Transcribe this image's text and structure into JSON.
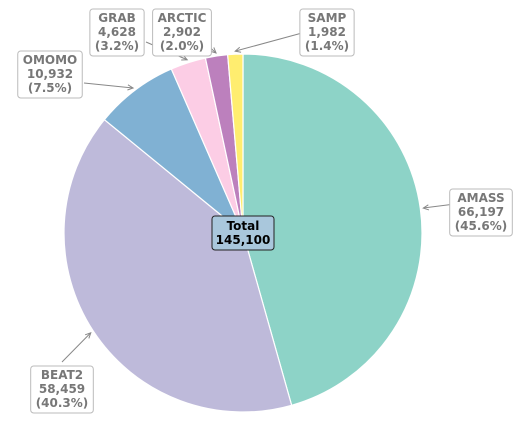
{
  "chart_data": {
    "type": "pie",
    "slices": [
      {
        "name": "AMASS",
        "value": 66197,
        "value_label": "66,197",
        "percent_label": "(45.6%)",
        "color": "#8dd3c7"
      },
      {
        "name": "BEAT2",
        "value": 58459,
        "value_label": "58,459",
        "percent_label": "(40.3%)",
        "color": "#bebada"
      },
      {
        "name": "OMOMO",
        "value": 10932,
        "value_label": "10,932",
        "percent_label": "(7.5%)",
        "color": "#80b1d3"
      },
      {
        "name": "GRAB",
        "value": 4628,
        "value_label": "4,628",
        "percent_label": "(3.2%)",
        "color": "#fccde5"
      },
      {
        "name": "ARCTIC",
        "value": 2902,
        "value_label": "2,902",
        "percent_label": "(2.0%)",
        "color": "#bc80bd"
      },
      {
        "name": "SAMP",
        "value": 1982,
        "value_label": "1,982",
        "percent_label": "(1.4%)",
        "color": "#ffed6f"
      }
    ],
    "center_label": {
      "title": "Total",
      "value": "145,100",
      "background": "#a9c7dc"
    },
    "start": "top",
    "direction": "clockwise"
  }
}
